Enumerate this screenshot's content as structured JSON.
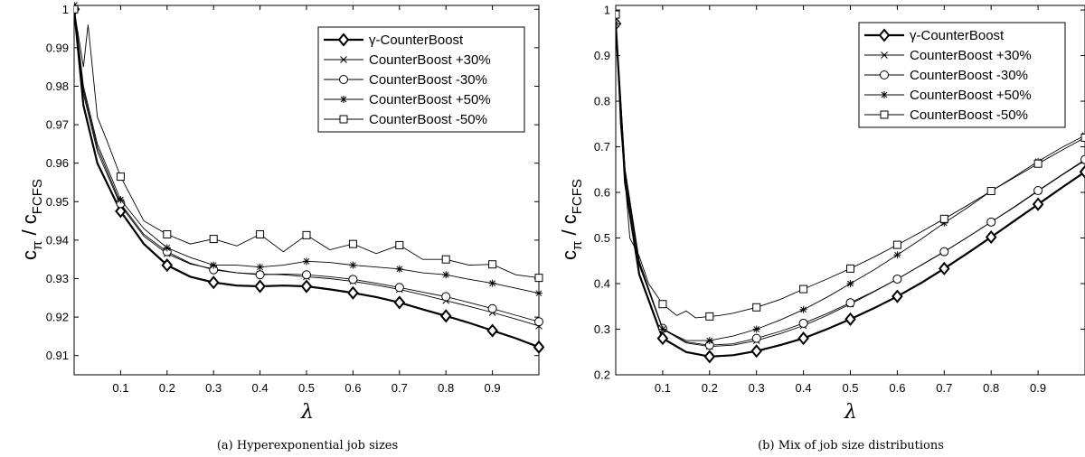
{
  "chart_data": [
    {
      "type": "line",
      "caption": "(a) Hyperexponential job sizes",
      "xlabel": "λ",
      "ylabel": {
        "main": "c",
        "sub1": "π",
        "mid": " / c",
        "sub2": "FCFS"
      },
      "xlim": [
        0,
        1
      ],
      "ylim": [
        0.905,
        1.001
      ],
      "xticks": [
        "0.1",
        "0.2",
        "0.3",
        "0.4",
        "0.5",
        "0.6",
        "0.7",
        "0.8",
        "0.9"
      ],
      "yticks": [
        "0.91",
        "0.92",
        "0.93",
        "0.94",
        "0.95",
        "0.96",
        "0.97",
        "0.98",
        "0.99",
        "1"
      ],
      "legend_position": "top-right",
      "series": [
        {
          "name": "γ-CounterBoost",
          "marker": "diamond",
          "bold": true,
          "x": [
            0,
            0.02,
            0.05,
            0.1,
            0.15,
            0.2,
            0.25,
            0.3,
            0.35,
            0.4,
            0.45,
            0.5,
            0.55,
            0.6,
            0.65,
            0.7,
            0.75,
            0.8,
            0.85,
            0.9,
            0.95,
            1.0
          ],
          "y": [
            1.0,
            0.975,
            0.96,
            0.9475,
            0.939,
            0.9335,
            0.9305,
            0.929,
            0.9282,
            0.928,
            0.9282,
            0.928,
            0.9272,
            0.9263,
            0.9252,
            0.9238,
            0.922,
            0.9203,
            0.9185,
            0.9165,
            0.9145,
            0.9122
          ]
        },
        {
          "name": "CounterBoost +30%",
          "marker": "x",
          "bold": false,
          "x": [
            0,
            0.02,
            0.05,
            0.1,
            0.15,
            0.2,
            0.25,
            0.3,
            0.35,
            0.4,
            0.45,
            0.5,
            0.55,
            0.6,
            0.65,
            0.7,
            0.75,
            0.8,
            0.85,
            0.9,
            0.95,
            1.0
          ],
          "y": [
            1.001,
            0.978,
            0.963,
            0.949,
            0.941,
            0.9365,
            0.9338,
            0.9325,
            0.9315,
            0.9312,
            0.931,
            0.9305,
            0.93,
            0.9293,
            0.9283,
            0.9272,
            0.9258,
            0.9243,
            0.9228,
            0.9212,
            0.9195,
            0.9177
          ]
        },
        {
          "name": "CounterBoost -30%",
          "marker": "circle",
          "bold": false,
          "x": [
            0,
            0.02,
            0.05,
            0.1,
            0.15,
            0.2,
            0.25,
            0.3,
            0.35,
            0.4,
            0.45,
            0.5,
            0.55,
            0.6,
            0.65,
            0.7,
            0.75,
            0.8,
            0.85,
            0.9,
            0.95,
            1.0
          ],
          "y": [
            1.0,
            0.979,
            0.964,
            0.9495,
            0.9415,
            0.937,
            0.934,
            0.9323,
            0.9315,
            0.931,
            0.9312,
            0.931,
            0.9305,
            0.9298,
            0.9288,
            0.9277,
            0.9265,
            0.9253,
            0.9238,
            0.9222,
            0.9205,
            0.9188
          ]
        },
        {
          "name": "CounterBoost +50%",
          "marker": "star",
          "bold": false,
          "x": [
            0,
            0.02,
            0.05,
            0.1,
            0.15,
            0.2,
            0.25,
            0.3,
            0.35,
            0.4,
            0.45,
            0.5,
            0.55,
            0.6,
            0.65,
            0.7,
            0.75,
            0.8,
            0.85,
            0.9,
            0.95,
            1.0
          ],
          "y": [
            1.001,
            0.98,
            0.965,
            0.9505,
            0.943,
            0.938,
            0.9355,
            0.9335,
            0.9335,
            0.933,
            0.9335,
            0.9345,
            0.9342,
            0.9335,
            0.933,
            0.9325,
            0.9315,
            0.931,
            0.9298,
            0.9288,
            0.9275,
            0.9262
          ]
        },
        {
          "name": "CounterBoost -50%",
          "marker": "square",
          "bold": false,
          "x": [
            0,
            0.02,
            0.03,
            0.05,
            0.07,
            0.1,
            0.15,
            0.2,
            0.25,
            0.3,
            0.35,
            0.4,
            0.45,
            0.5,
            0.55,
            0.6,
            0.65,
            0.7,
            0.75,
            0.8,
            0.85,
            0.9,
            0.95,
            1.0
          ],
          "y": [
            1.0,
            0.985,
            0.996,
            0.972,
            0.966,
            0.9565,
            0.945,
            0.9415,
            0.939,
            0.9403,
            0.9385,
            0.9415,
            0.937,
            0.9413,
            0.9375,
            0.939,
            0.9365,
            0.9387,
            0.935,
            0.935,
            0.9335,
            0.9337,
            0.931,
            0.9302
          ]
        }
      ]
    },
    {
      "type": "line",
      "caption": "(b) Mix of job size distributions",
      "xlabel": "λ",
      "ylabel": {
        "main": "c",
        "sub1": "π",
        "mid": " / c",
        "sub2": "FCFS"
      },
      "xlim": [
        0,
        1
      ],
      "ylim": [
        0.2,
        1.01
      ],
      "xticks": [
        "0.1",
        "0.2",
        "0.3",
        "0.4",
        "0.5",
        "0.6",
        "0.7",
        "0.8",
        "0.9"
      ],
      "yticks": [
        "0.2",
        "0.3",
        "0.4",
        "0.5",
        "0.6",
        "0.7",
        "0.8",
        "0.9",
        "1"
      ],
      "legend_position": "top-right",
      "series": [
        {
          "name": "γ-CounterBoost",
          "marker": "diamond",
          "bold": true,
          "x": [
            0,
            0.02,
            0.05,
            0.1,
            0.15,
            0.2,
            0.25,
            0.3,
            0.35,
            0.4,
            0.45,
            0.5,
            0.55,
            0.6,
            0.65,
            0.7,
            0.75,
            0.8,
            0.85,
            0.9,
            0.95,
            1.0
          ],
          "y": [
            0.97,
            0.62,
            0.42,
            0.28,
            0.25,
            0.24,
            0.243,
            0.252,
            0.265,
            0.28,
            0.3,
            0.322,
            0.346,
            0.372,
            0.401,
            0.433,
            0.467,
            0.502,
            0.538,
            0.574,
            0.61,
            0.645
          ]
        },
        {
          "name": "CounterBoost +30%",
          "marker": "x",
          "bold": false,
          "x": [
            0,
            0.02,
            0.05,
            0.1,
            0.15,
            0.2,
            0.25,
            0.3,
            0.35,
            0.4,
            0.45,
            0.5,
            0.55,
            0.6,
            0.65,
            0.7,
            0.75,
            0.8,
            0.85,
            0.9,
            0.95,
            1.0
          ],
          "y": [
            0.97,
            0.64,
            0.44,
            0.3,
            0.27,
            0.262,
            0.265,
            0.275,
            0.29,
            0.308,
            0.33,
            0.355,
            0.382,
            0.41,
            0.44,
            0.47,
            0.502,
            0.535,
            0.568,
            0.603,
            0.637,
            0.67
          ]
        },
        {
          "name": "CounterBoost -30%",
          "marker": "circle",
          "bold": false,
          "x": [
            0,
            0.02,
            0.05,
            0.1,
            0.15,
            0.2,
            0.25,
            0.3,
            0.35,
            0.4,
            0.45,
            0.5,
            0.55,
            0.6,
            0.65,
            0.7,
            0.75,
            0.8,
            0.85,
            0.9,
            0.95,
            1.0
          ],
          "y": [
            0.97,
            0.645,
            0.445,
            0.302,
            0.272,
            0.265,
            0.268,
            0.28,
            0.295,
            0.313,
            0.334,
            0.358,
            0.383,
            0.41,
            0.44,
            0.47,
            0.502,
            0.535,
            0.569,
            0.604,
            0.638,
            0.672
          ]
        },
        {
          "name": "CounterBoost +50%",
          "marker": "star",
          "bold": false,
          "x": [
            0,
            0.02,
            0.05,
            0.1,
            0.15,
            0.2,
            0.25,
            0.3,
            0.35,
            0.4,
            0.45,
            0.5,
            0.55,
            0.6,
            0.65,
            0.7,
            0.75,
            0.8,
            0.85,
            0.9,
            0.95,
            1.0
          ],
          "y": [
            0.97,
            0.65,
            0.45,
            0.3,
            0.275,
            0.275,
            0.285,
            0.3,
            0.32,
            0.343,
            0.37,
            0.4,
            0.43,
            0.463,
            0.497,
            0.533,
            0.567,
            0.603,
            0.635,
            0.668,
            0.698,
            0.725
          ]
        },
        {
          "name": "CounterBoost -50%",
          "marker": "square",
          "bold": false,
          "x": [
            0,
            0.01,
            0.03,
            0.05,
            0.07,
            0.1,
            0.13,
            0.15,
            0.17,
            0.2,
            0.22,
            0.25,
            0.3,
            0.35,
            0.4,
            0.45,
            0.5,
            0.55,
            0.6,
            0.65,
            0.7,
            0.75,
            0.8,
            0.85,
            0.9,
            0.95,
            1.0
          ],
          "y": [
            0.99,
            0.75,
            0.5,
            0.46,
            0.4,
            0.355,
            0.33,
            0.34,
            0.325,
            0.328,
            0.33,
            0.335,
            0.348,
            0.365,
            0.388,
            0.41,
            0.433,
            0.458,
            0.485,
            0.513,
            0.542,
            0.572,
            0.603,
            0.633,
            0.663,
            0.692,
            0.72
          ]
        }
      ]
    }
  ]
}
